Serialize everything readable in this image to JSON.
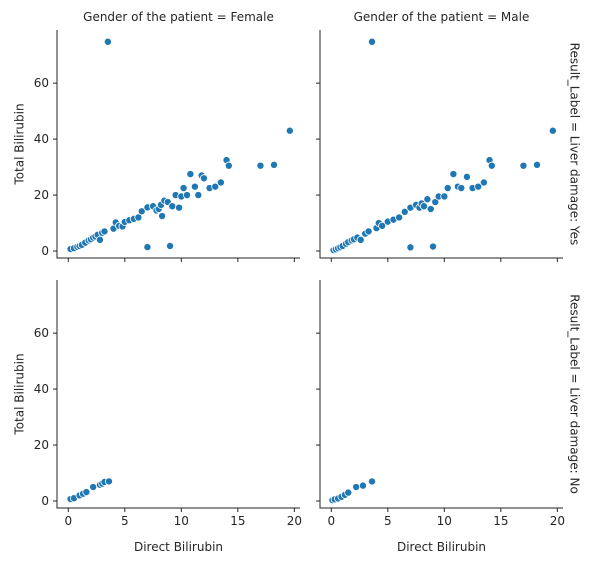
{
  "chart_data": {
    "type": "scatter",
    "xlabel": "Direct Bilirubin",
    "ylabel": "Total Bilirubin",
    "col_titles": [
      "Gender of the patient = Female",
      "Gender of the patient = Male"
    ],
    "row_titles": [
      "Result_Label = Liver damage: Yes",
      "Result_Label = Liver damage: No"
    ],
    "xlim": [
      -1,
      20.5
    ],
    "ylim": [
      -2.5,
      79
    ],
    "xticks": [
      0,
      5,
      10,
      15,
      20
    ],
    "yticks": [
      0,
      20,
      40,
      60
    ],
    "marker_color": "#1f77b4",
    "panels": [
      {
        "row": "Liver damage: Yes",
        "col": "Female",
        "points": [
          [
            0.2,
            0.7
          ],
          [
            0.5,
            1.0
          ],
          [
            0.8,
            1.5
          ],
          [
            1.0,
            1.8
          ],
          [
            1.2,
            2.2
          ],
          [
            1.5,
            3.0
          ],
          [
            1.8,
            3.8
          ],
          [
            2.0,
            4.2
          ],
          [
            2.2,
            4.8
          ],
          [
            2.4,
            5.2
          ],
          [
            2.6,
            5.8
          ],
          [
            2.8,
            4.0
          ],
          [
            3.0,
            6.5
          ],
          [
            3.2,
            7.0
          ],
          [
            3.5,
            74.8
          ],
          [
            4.0,
            8.0
          ],
          [
            4.2,
            10.2
          ],
          [
            4.5,
            9.0
          ],
          [
            4.8,
            8.8
          ],
          [
            5.0,
            10.4
          ],
          [
            5.4,
            11.0
          ],
          [
            5.8,
            11.5
          ],
          [
            6.2,
            12.0
          ],
          [
            6.5,
            14.2
          ],
          [
            7.0,
            15.6
          ],
          [
            7.0,
            1.4
          ],
          [
            7.5,
            16.0
          ],
          [
            7.8,
            14.5
          ],
          [
            8.0,
            15.0
          ],
          [
            8.2,
            16.5
          ],
          [
            8.3,
            12.5
          ],
          [
            8.5,
            18.0
          ],
          [
            8.8,
            17.5
          ],
          [
            9.0,
            1.8
          ],
          [
            9.2,
            16.0
          ],
          [
            9.5,
            20.0
          ],
          [
            9.8,
            15.5
          ],
          [
            10.0,
            19.5
          ],
          [
            10.2,
            22.5
          ],
          [
            10.5,
            20.0
          ],
          [
            10.8,
            27.5
          ],
          [
            11.2,
            23.0
          ],
          [
            11.5,
            20.0
          ],
          [
            11.8,
            27.0
          ],
          [
            12.0,
            26.0
          ],
          [
            12.5,
            22.5
          ],
          [
            13.0,
            23.0
          ],
          [
            13.5,
            24.5
          ],
          [
            14.0,
            32.5
          ],
          [
            14.2,
            30.5
          ],
          [
            17.0,
            30.5
          ],
          [
            18.2,
            30.8
          ],
          [
            19.6,
            43.0
          ]
        ]
      },
      {
        "row": "Liver damage: Yes",
        "col": "Male",
        "points": [
          [
            0.2,
            0.3
          ],
          [
            0.4,
            0.6
          ],
          [
            0.6,
            1.0
          ],
          [
            0.8,
            1.4
          ],
          [
            1.0,
            1.8
          ],
          [
            1.3,
            2.6
          ],
          [
            1.5,
            3.2
          ],
          [
            1.8,
            3.8
          ],
          [
            2.0,
            4.2
          ],
          [
            2.3,
            4.8
          ],
          [
            2.6,
            4.0
          ],
          [
            3.0,
            6.2
          ],
          [
            3.3,
            7.0
          ],
          [
            3.6,
            74.8
          ],
          [
            4.0,
            8.2
          ],
          [
            4.2,
            10.0
          ],
          [
            4.5,
            9.0
          ],
          [
            5.0,
            10.5
          ],
          [
            5.5,
            11.2
          ],
          [
            6.0,
            12.0
          ],
          [
            6.5,
            14.0
          ],
          [
            7.0,
            15.5
          ],
          [
            7.0,
            1.3
          ],
          [
            7.5,
            16.5
          ],
          [
            7.8,
            15.5
          ],
          [
            8.0,
            17.0
          ],
          [
            8.2,
            16.0
          ],
          [
            8.5,
            18.5
          ],
          [
            8.8,
            15.0
          ],
          [
            9.0,
            1.6
          ],
          [
            9.2,
            17.5
          ],
          [
            9.5,
            19.5
          ],
          [
            10.0,
            19.5
          ],
          [
            10.3,
            22.5
          ],
          [
            10.8,
            27.5
          ],
          [
            11.2,
            23.0
          ],
          [
            11.5,
            22.5
          ],
          [
            12.0,
            26.5
          ],
          [
            12.5,
            22.5
          ],
          [
            13.0,
            23.0
          ],
          [
            13.5,
            24.5
          ],
          [
            14.0,
            32.5
          ],
          [
            14.2,
            30.5
          ],
          [
            17.0,
            30.5
          ],
          [
            18.2,
            30.8
          ],
          [
            19.6,
            43.0
          ]
        ]
      },
      {
        "row": "Liver damage: No",
        "col": "Female",
        "points": [
          [
            0.2,
            0.7
          ],
          [
            0.5,
            1.0
          ],
          [
            1.0,
            2.0
          ],
          [
            1.3,
            2.6
          ],
          [
            1.6,
            3.2
          ],
          [
            2.2,
            5.0
          ],
          [
            2.8,
            5.8
          ],
          [
            3.0,
            6.2
          ],
          [
            3.2,
            6.8
          ],
          [
            3.6,
            7.0
          ]
        ]
      },
      {
        "row": "Liver damage: No",
        "col": "Male",
        "points": [
          [
            0.1,
            0.3
          ],
          [
            0.3,
            0.6
          ],
          [
            0.6,
            0.9
          ],
          [
            0.9,
            1.5
          ],
          [
            1.2,
            2.2
          ],
          [
            1.5,
            3.0
          ],
          [
            2.2,
            5.0
          ],
          [
            2.8,
            5.5
          ],
          [
            3.6,
            7.0
          ]
        ]
      }
    ]
  }
}
